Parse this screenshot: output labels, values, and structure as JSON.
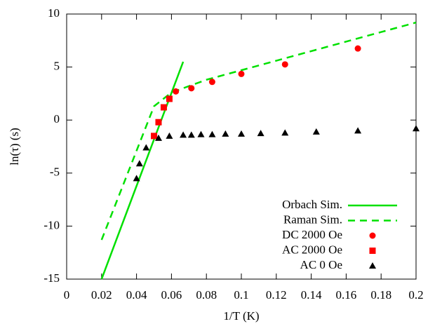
{
  "chart_data": {
    "type": "scatter",
    "xlabel": "1/T (K)",
    "ylabel": "ln(τ) (s)",
    "xlim": [
      0,
      0.2
    ],
    "ylim": [
      -15,
      10
    ],
    "xticks": [
      0,
      0.02,
      0.04,
      0.06,
      0.08,
      0.1,
      0.12,
      0.14,
      0.16,
      0.18,
      0.2
    ],
    "yticks": [
      -15,
      -10,
      -5,
      0,
      5,
      10
    ],
    "legend": "bottom-right",
    "series": [
      {
        "name": "Orbach Sim.",
        "type": "line",
        "dash": false,
        "color": "#00e000",
        "x": [
          0.02,
          0.0667
        ],
        "values": [
          -15,
          5.5
        ]
      },
      {
        "name": "Raman Sim.",
        "type": "line",
        "dash": true,
        "color": "#00e000",
        "x": [
          0.02,
          0.05,
          0.06,
          0.08,
          0.1,
          0.12,
          0.14,
          0.16,
          0.18,
          0.2
        ],
        "values": [
          -11.3,
          1.3,
          2.6,
          3.8,
          4.7,
          5.6,
          6.5,
          7.4,
          8.3,
          9.2
        ]
      },
      {
        "name": "DC 2000 Oe",
        "type": "scatter",
        "marker": "circle",
        "color": "#ff0000",
        "x": [
          0.0625,
          0.0714,
          0.0833,
          0.1,
          0.125,
          0.1667
        ],
        "values": [
          2.7,
          3.0,
          3.6,
          4.35,
          5.25,
          6.75
        ]
      },
      {
        "name": "AC 2000 Oe",
        "type": "scatter",
        "marker": "square",
        "color": "#ff0000",
        "x": [
          0.05,
          0.0526,
          0.0556,
          0.0588
        ],
        "values": [
          -1.5,
          -0.2,
          1.2,
          2.0
        ]
      },
      {
        "name": "AC 0 Oe",
        "type": "scatter",
        "marker": "triangle",
        "color": "#000000",
        "x": [
          0.04,
          0.0417,
          0.0455,
          0.0526,
          0.0588,
          0.0667,
          0.0714,
          0.0769,
          0.0833,
          0.0909,
          0.1,
          0.1111,
          0.125,
          0.1429,
          0.1667,
          0.2
        ],
        "values": [
          -5.5,
          -4.1,
          -2.6,
          -1.7,
          -1.5,
          -1.4,
          -1.4,
          -1.35,
          -1.35,
          -1.3,
          -1.3,
          -1.25,
          -1.2,
          -1.1,
          -1.0,
          -0.8
        ]
      }
    ]
  }
}
